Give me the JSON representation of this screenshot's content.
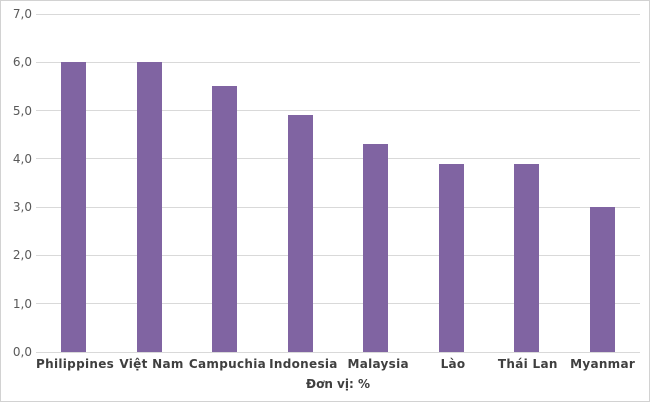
{
  "chart_data": {
    "type": "bar",
    "title": "",
    "categories": [
      "Philippines",
      "Việt Nam",
      "Campuchia",
      "Indonesia",
      "Malaysia",
      "Lào",
      "Thái Lan",
      "Myanmar"
    ],
    "values": [
      6.0,
      6.0,
      5.5,
      4.9,
      4.3,
      3.9,
      3.9,
      3.0
    ],
    "xlabel": "Đơn vị: %",
    "ylabel": "",
    "ylim": [
      0,
      7
    ],
    "ytick_step": 1,
    "ytick_labels": [
      "0,0",
      "1,0",
      "2,0",
      "3,0",
      "4,0",
      "5,0",
      "6,0",
      "7,0"
    ],
    "grid": true,
    "legend": "none",
    "colors": {
      "bar": "#8064A2",
      "gridline": "#D9D9D9",
      "axis_line": "#D9D9D9",
      "tick_label": "#595959",
      "category_label": "#3F3F3F",
      "axis_title": "#3F3F3F",
      "background": "#FFFFFF"
    }
  }
}
